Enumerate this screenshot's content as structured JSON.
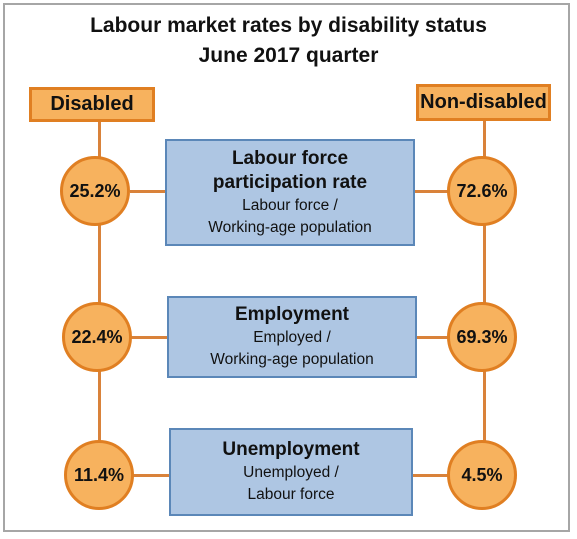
{
  "title_line1": "Labour market rates by disability status",
  "title_line2": "June 2017 quarter",
  "headers": {
    "disabled": "Disabled",
    "non_disabled": "Non-disabled"
  },
  "metrics": [
    {
      "bold": [
        "Labour force",
        "participation rate"
      ],
      "sub": [
        "Labour force /",
        "Working-age population"
      ],
      "disabled": "25.2%",
      "non_disabled": "72.6%"
    },
    {
      "bold": [
        "Employment"
      ],
      "sub": [
        "Employed /",
        "Working-age population"
      ],
      "disabled": "22.4%",
      "non_disabled": "69.3%"
    },
    {
      "bold": [
        "Unemployment"
      ],
      "sub": [
        "Unemployed /",
        "Labour force"
      ],
      "disabled": "11.4%",
      "non_disabled": "4.5%"
    }
  ],
  "colors": {
    "orange_fill": "#f7b25e",
    "orange_border": "#e07f22",
    "blue_fill": "#aec6e3",
    "blue_border": "#5b87b8"
  }
}
